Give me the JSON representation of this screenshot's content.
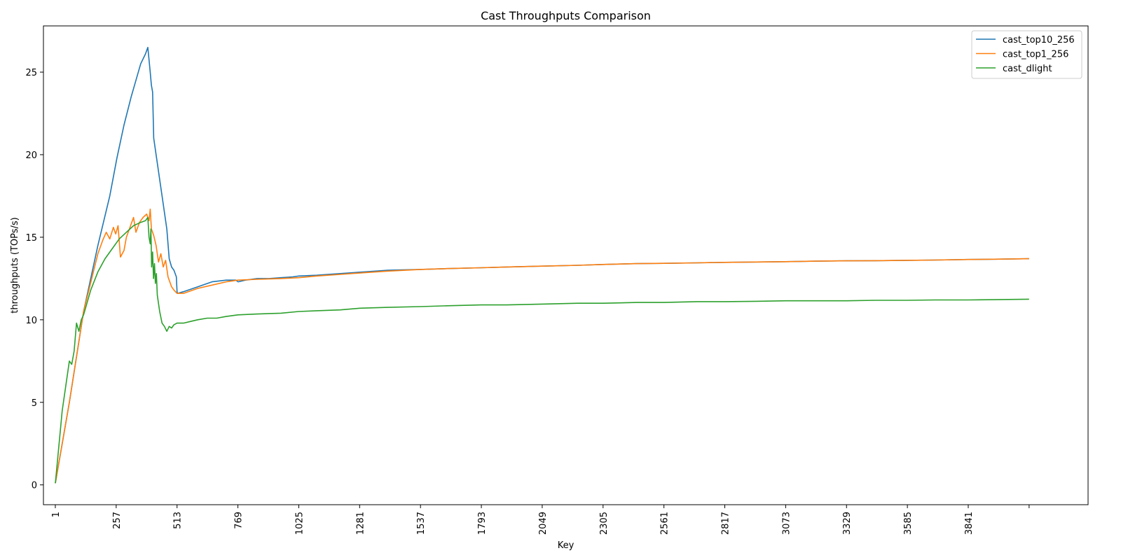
{
  "chart_data": {
    "type": "line",
    "title": "Cast Throughputs Comparison",
    "xlabel": "Key",
    "ylabel": "throughputs (TOPs/s)",
    "xlim": [
      -49,
      4345
    ],
    "ylim": [
      -1.2,
      27.8
    ],
    "x_ticks": [
      1,
      257,
      513,
      769,
      1025,
      1281,
      1537,
      1793,
      2049,
      2305,
      2561,
      2817,
      3073,
      3329,
      3585,
      3841,
      4097
    ],
    "x_tick_labels": [
      "1",
      "257",
      "513",
      "769",
      "1025",
      "1281",
      "1537",
      "1793",
      "2049",
      "2305",
      "2561",
      "2817",
      "3073",
      "3329",
      "3585",
      "3841",
      ""
    ],
    "y_ticks": [
      0,
      5,
      10,
      15,
      20,
      25
    ],
    "y_tick_labels": [
      "0",
      "5",
      "10",
      "15",
      "20",
      "25"
    ],
    "grid": false,
    "legend_position": "top-right",
    "series": [
      {
        "name": "cast_top10_256",
        "color": "#1f77b4",
        "x": [
          1,
          60,
          120,
          180,
          230,
          260,
          290,
          320,
          340,
          360,
          380,
          390,
          400,
          405,
          410,
          415,
          420,
          440,
          450,
          460,
          470,
          480,
          490,
          500,
          510,
          513,
          515,
          540,
          600,
          660,
          720,
          760,
          770,
          800,
          850,
          900,
          950,
          1000,
          1025,
          1100,
          1200,
          1300,
          1400,
          1537,
          1650,
          1793,
          1900,
          2049,
          2200,
          2305,
          2450,
          2561,
          2700,
          2817,
          2950,
          3073,
          3200,
          3329,
          3450,
          3585,
          3700,
          3841,
          3950,
          4097
        ],
        "y": [
          0.1,
          5.0,
          10.5,
          14.5,
          17.5,
          19.8,
          21.8,
          23.5,
          24.5,
          25.5,
          26.1,
          26.5,
          25.0,
          24.2,
          23.8,
          21.0,
          20.5,
          18.5,
          17.5,
          16.5,
          15.5,
          13.7,
          13.2,
          13.0,
          12.6,
          11.7,
          11.6,
          11.7,
          12.0,
          12.3,
          12.4,
          12.4,
          12.3,
          12.4,
          12.5,
          12.5,
          12.55,
          12.6,
          12.65,
          12.7,
          12.8,
          12.9,
          13.0,
          13.05,
          13.1,
          13.15,
          13.2,
          13.25,
          13.3,
          13.35,
          13.4,
          13.42,
          13.45,
          13.48,
          13.5,
          13.52,
          13.55,
          13.57,
          13.58,
          13.6,
          13.62,
          13.65,
          13.67,
          13.7
        ]
      },
      {
        "name": "cast_top1_256",
        "color": "#ff7f0e",
        "x": [
          1,
          60,
          120,
          180,
          200,
          215,
          230,
          245,
          255,
          265,
          275,
          290,
          300,
          310,
          320,
          330,
          340,
          355,
          370,
          385,
          395,
          400,
          405,
          410,
          415,
          425,
          435,
          445,
          455,
          465,
          475,
          490,
          500,
          513,
          540,
          600,
          660,
          720,
          769,
          850,
          950,
          1025,
          1100,
          1200,
          1300,
          1400,
          1537,
          1650,
          1793,
          1900,
          2049,
          2200,
          2305,
          2450,
          2561,
          2700,
          2817,
          2950,
          3073,
          3200,
          3329,
          3450,
          3585,
          3700,
          3841,
          3950,
          4097
        ],
        "y": [
          0.1,
          5.0,
          10.5,
          14.0,
          14.8,
          15.3,
          14.9,
          15.6,
          15.2,
          15.7,
          13.8,
          14.2,
          15.0,
          15.4,
          15.8,
          16.2,
          15.3,
          15.9,
          16.2,
          16.4,
          16.0,
          16.7,
          15.5,
          15.3,
          15.1,
          14.5,
          13.5,
          14.0,
          13.2,
          13.6,
          12.6,
          12.0,
          11.8,
          11.6,
          11.6,
          11.9,
          12.1,
          12.3,
          12.4,
          12.45,
          12.5,
          12.55,
          12.65,
          12.75,
          12.85,
          12.95,
          13.05,
          13.1,
          13.15,
          13.2,
          13.25,
          13.3,
          13.35,
          13.4,
          13.42,
          13.45,
          13.48,
          13.5,
          13.52,
          13.55,
          13.57,
          13.58,
          13.6,
          13.62,
          13.65,
          13.67,
          13.7
        ]
      },
      {
        "name": "cast_dlight",
        "color": "#2ca02c",
        "x": [
          1,
          30,
          60,
          70,
          80,
          90,
          100,
          110,
          120,
          150,
          180,
          210,
          240,
          270,
          300,
          330,
          360,
          380,
          390,
          395,
          400,
          403,
          406,
          410,
          414,
          418,
          422,
          426,
          430,
          440,
          450,
          460,
          470,
          480,
          490,
          500,
          513,
          540,
          570,
          600,
          640,
          680,
          720,
          769,
          850,
          950,
          1025,
          1100,
          1200,
          1281,
          1400,
          1537,
          1650,
          1793,
          1900,
          2049,
          2200,
          2305,
          2450,
          2561,
          2700,
          2817,
          2950,
          3073,
          3200,
          3329,
          3450,
          3585,
          3700,
          3841,
          3950,
          4097
        ],
        "y": [
          0.1,
          4.5,
          7.5,
          7.3,
          8.1,
          9.8,
          9.3,
          10.0,
          10.3,
          11.8,
          12.9,
          13.7,
          14.3,
          14.9,
          15.3,
          15.7,
          15.9,
          16.0,
          16.2,
          15.0,
          14.6,
          15.5,
          13.2,
          14.1,
          12.5,
          13.4,
          12.2,
          12.8,
          11.5,
          10.5,
          9.8,
          9.6,
          9.3,
          9.6,
          9.5,
          9.7,
          9.8,
          9.8,
          9.9,
          10.0,
          10.1,
          10.1,
          10.2,
          10.3,
          10.35,
          10.4,
          10.5,
          10.55,
          10.6,
          10.7,
          10.75,
          10.8,
          10.85,
          10.9,
          10.9,
          10.95,
          11.0,
          11.0,
          11.05,
          11.05,
          11.1,
          11.1,
          11.12,
          11.15,
          11.15,
          11.15,
          11.18,
          11.18,
          11.2,
          11.2,
          11.22,
          11.25
        ]
      }
    ]
  }
}
